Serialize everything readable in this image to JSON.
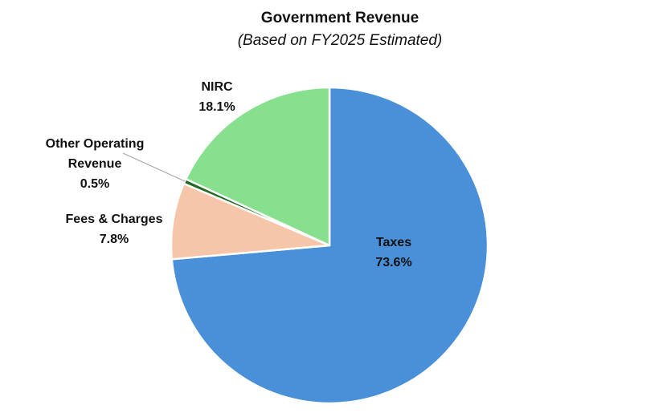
{
  "chart_data": {
    "type": "pie",
    "title": "Government Revenue",
    "subtitle": "(Based on FY2025 Estimated)",
    "categories": [
      "Taxes",
      "Fees & Charges",
      "Other Operating Revenue",
      "NIRC"
    ],
    "values": [
      73.6,
      7.8,
      0.5,
      18.1
    ],
    "value_labels": [
      "73.6%",
      "7.8%",
      "0.5%",
      "18.1%"
    ],
    "colors": [
      "#4a90d9",
      "#f5c6aa",
      "#1e6b22",
      "#86e08e"
    ],
    "start_angle_deg": 0,
    "direction": "clockwise",
    "legend": "none",
    "labels": {
      "taxes": {
        "name": "Taxes",
        "pct": "73.6%"
      },
      "fees": {
        "name": "Fees & Charges",
        "pct": "7.8%"
      },
      "other_line1": "Other Operating",
      "other_line2": "Revenue",
      "other_pct": "0.5%",
      "nirc": {
        "name": "NIRC",
        "pct": "18.1%"
      }
    }
  }
}
